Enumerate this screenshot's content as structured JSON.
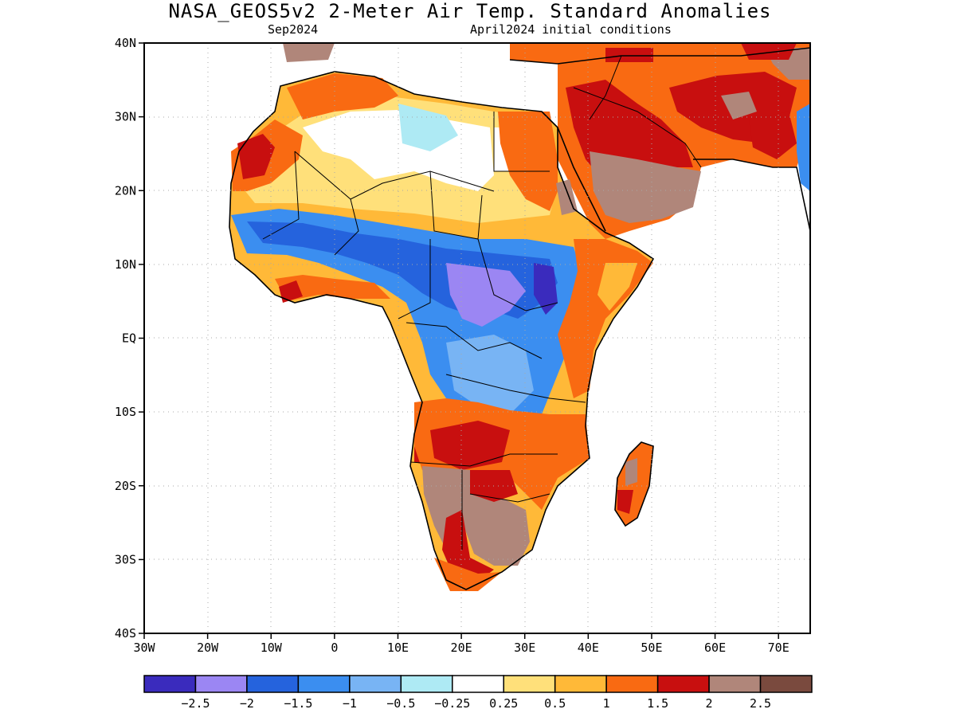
{
  "header": {
    "title": "NASA_GEOS5v2 2-Meter Air Temp. Standard Anomalies",
    "subtitle_left": "Sep2024",
    "subtitle_right": "April2024 initial conditions"
  },
  "map": {
    "region": "Africa",
    "lon_range": [
      -30,
      75
    ],
    "lat_range": [
      -40,
      40
    ],
    "grid": true,
    "lat_ticks": [
      "40N",
      "30N",
      "20N",
      "10N",
      "EQ",
      "10S",
      "20S",
      "30S",
      "40S"
    ],
    "lon_ticks": [
      "30W",
      "20W",
      "10W",
      "0",
      "10E",
      "20E",
      "30E",
      "40E",
      "50E",
      "60E",
      "70E"
    ]
  },
  "legend": {
    "labels": [
      "-2.5",
      "-2",
      "-1.5",
      "-1",
      "-0.5",
      "-0.25",
      "0.25",
      "0.5",
      "1",
      "1.5",
      "2",
      "2.5"
    ],
    "colors": [
      "#3a2bbd",
      "#9b86f3",
      "#2563dd",
      "#3b8ef0",
      "#78b4f4",
      "#aeeaf4",
      "#ffffff",
      "#ffe07a",
      "#ffb938",
      "#f96a12",
      "#c80f0f",
      "#b0867a",
      "#7a4a3e"
    ]
  }
}
